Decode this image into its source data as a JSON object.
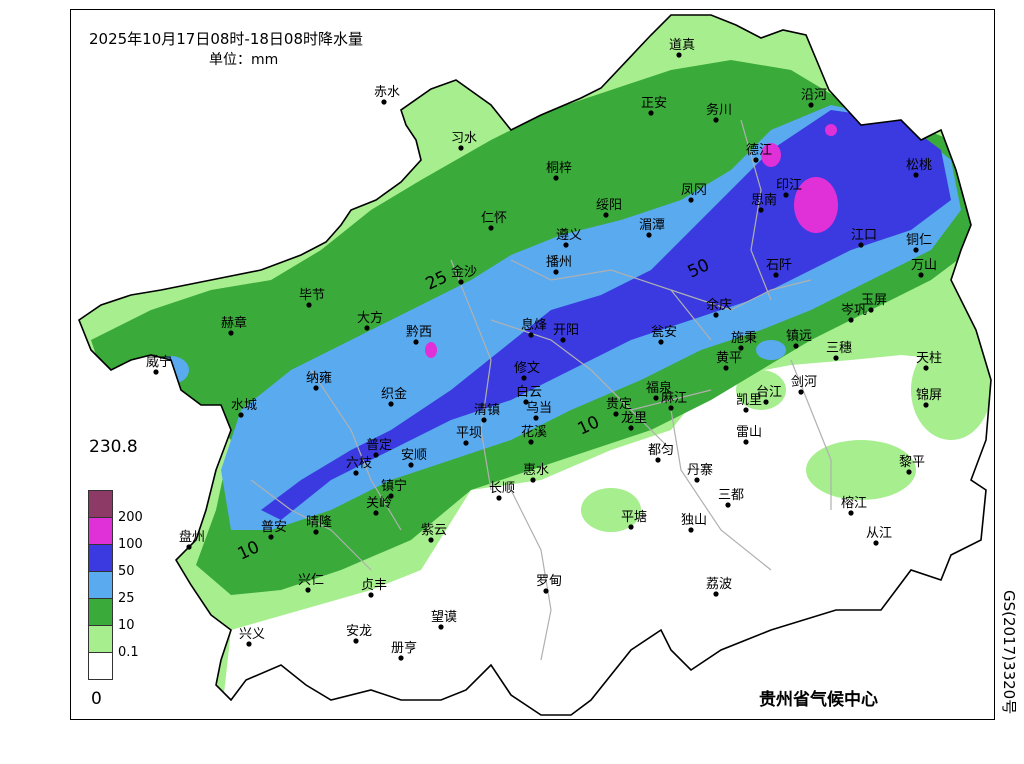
{
  "map": {
    "title": "2025年10月17日08时-18日08时降水量",
    "unit": "单位：mm",
    "agency": "贵州省气候中心",
    "approval_number": "GS(2017)3320号",
    "legend": {
      "max_label": "230.8",
      "min_label": "0",
      "classes": [
        {
          "label": "200",
          "color": "#8e3a66"
        },
        {
          "label": "100",
          "color": "#e030d8"
        },
        {
          "label": "50",
          "color": "#3a3ae0"
        },
        {
          "label": "25",
          "color": "#5aaaf0"
        },
        {
          "label": "10",
          "color": "#3aaa3a"
        },
        {
          "label": "0.1",
          "color": "#a6ee8e"
        },
        {
          "label": "",
          "color": "#ffffff"
        }
      ]
    },
    "contour_labels": [
      "25",
      "50",
      "10",
      "10"
    ],
    "cities": [
      "道真",
      "赤水",
      "正安",
      "务川",
      "沿河",
      "习水",
      "德江",
      "桐梓",
      "松桃",
      "绥阳",
      "凤冈",
      "印江",
      "思南",
      "仁怀",
      "湄潭",
      "遵义",
      "江口",
      "铜仁",
      "播州",
      "石阡",
      "金沙",
      "万山",
      "毕节",
      "余庆",
      "岑巩",
      "玉屏",
      "大方",
      "赫章",
      "黔西",
      "息烽",
      "开阳",
      "瓮安",
      "施秉",
      "镇远",
      "三穗",
      "天柱",
      "威宁",
      "修文",
      "黄平",
      "白云",
      "福泉",
      "纳雍",
      "凯里",
      "台江",
      "剑河",
      "锦屏",
      "织金",
      "乌当",
      "清镇",
      "贵定",
      "麻江",
      "水城",
      "平坝",
      "花溪",
      "雷山",
      "龙里",
      "都匀",
      "丹寨",
      "黎平",
      "普定",
      "六枝",
      "安顺",
      "惠水",
      "长顺",
      "镇宁",
      "三都",
      "榕江",
      "关岭",
      "盘州",
      "普安",
      "晴隆",
      "紫云",
      "平塘",
      "独山",
      "从江",
      "兴仁",
      "贞丰",
      "罗甸",
      "荔波",
      "兴义",
      "安龙",
      "望谟",
      "册亨"
    ],
    "colors": {
      "border": "#000000",
      "county_boundary": "#b0b0b0"
    }
  }
}
